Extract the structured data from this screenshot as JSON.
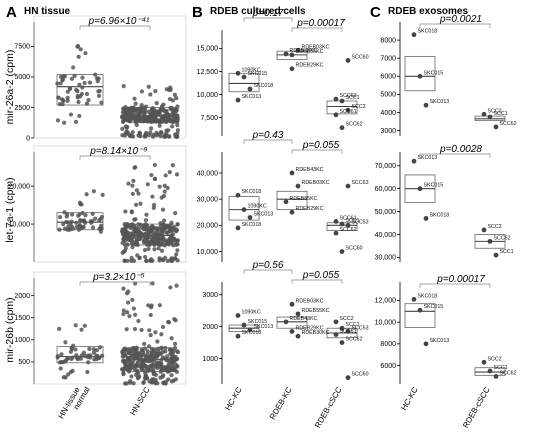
{
  "panels": {
    "A": {
      "letter": "A",
      "title": "HN tissue",
      "xticks": [
        "HN-tissue normal",
        "HN-SCC"
      ]
    },
    "B": {
      "letter": "B",
      "title": "RDEB cultured cells",
      "xticks": [
        "HC-KC",
        "RDEB-KC",
        "RDEB-cSCC"
      ]
    },
    "C": {
      "letter": "C",
      "title": "RDEB exosomes",
      "xticks": [
        "HC-KC",
        "RDEB-cSCC"
      ]
    }
  },
  "row_labels": [
    "mir-26a-2 (cpm)",
    "let-7a-1 (cpm)",
    "mir-26b (cpm)"
  ],
  "pvalues": {
    "A1": "p=6.96×10⁻⁴¹",
    "A2": "p=8.14×10⁻⁹",
    "A3": "p=3.2×10⁻⁵",
    "B1a": "p=0.17",
    "B1b": "p=0.00017",
    "B2a": "p=0.43",
    "B2b": "p=0.055",
    "B3a": "p=0.56",
    "B3b": "p=0.055",
    "C1": "p=0.0021",
    "C2": "p=0.0028",
    "C3": "p=0.00017"
  },
  "chart_data": [
    {
      "id": "A1",
      "type": "box-scatter",
      "ylabel": "mir-26a-2 (cpm)",
      "yticks": [
        "0",
        "2500",
        "5000",
        "7500"
      ],
      "ylim": [
        0,
        9500
      ],
      "categories": [
        "HN-tissue normal",
        "HN-SCC"
      ],
      "boxes": [
        {
          "q1": 2700,
          "median": 4200,
          "q3": 5200,
          "low": 1200,
          "high": 7600
        },
        {
          "q1": 1300,
          "median": 1800,
          "q3": 2500,
          "low": 100,
          "high": 4300
        }
      ],
      "pvalue": "p=6.96×10⁻⁴¹"
    },
    {
      "id": "A2",
      "type": "box-scatter",
      "ylabel": "let-7a-1 (cpm)",
      "yticks": [
        "10,000",
        "20,000"
      ],
      "ylim": [
        0,
        29000
      ],
      "categories": [
        "HN-tissue normal",
        "HN-SCC"
      ],
      "boxes": [
        {
          "q1": 8500,
          "median": 10500,
          "q3": 13000,
          "low": 4000,
          "high": 19500
        },
        {
          "q1": 4500,
          "median": 7000,
          "q3": 10000,
          "low": 300,
          "high": 27000
        }
      ],
      "pvalue": "p=8.14×10⁻⁹"
    },
    {
      "id": "A3",
      "type": "box-scatter",
      "ylabel": "mir-26b (cpm)",
      "yticks": [
        "500",
        "1000",
        "1500",
        "2000"
      ],
      "ylim": [
        0,
        2400
      ],
      "categories": [
        "HN-tissue normal",
        "HN-SCC"
      ],
      "boxes": [
        {
          "q1": 480,
          "median": 620,
          "q3": 850,
          "low": 150,
          "high": 1500
        },
        {
          "q1": 280,
          "median": 560,
          "q3": 820,
          "low": 10,
          "high": 2300
        }
      ],
      "pvalue": "p=3.2×10⁻⁵"
    },
    {
      "id": "B1",
      "type": "box-scatter",
      "yticks": [
        "7,500",
        "10,000",
        "12,500",
        "15,000"
      ],
      "ylim": [
        5500,
        17000
      ],
      "categories": [
        "HC-KC",
        "RDEB-KC",
        "RDEB-cSCC"
      ],
      "boxes": [
        {
          "q1": 10300,
          "median": 11200,
          "q3": 12300
        },
        {
          "q1": 13800,
          "median": 14300,
          "q3": 14700
        },
        {
          "q1": 7900,
          "median": 8700,
          "q3": 9300
        }
      ],
      "points": [
        {
          "label": "1090KC",
          "x": 0,
          "y": 12300
        },
        {
          "label": "SKC015",
          "x": 0,
          "y": 11900
        },
        {
          "label": "SKC018",
          "x": 0,
          "y": 10600
        },
        {
          "label": "SKC013",
          "x": 0,
          "y": 9400
        },
        {
          "label": "RDEB55KC",
          "x": 1,
          "y": 14300
        },
        {
          "label": "RDEB03KC",
          "x": 1,
          "y": 14800
        },
        {
          "label": "RDEB43KC",
          "x": 1,
          "y": 14400
        },
        {
          "label": "RDEB29KC",
          "x": 1,
          "y": 12800
        },
        {
          "label": "SCC60",
          "x": 2,
          "y": 13700
        },
        {
          "label": "SCC63",
          "x": 2,
          "y": 9500
        },
        {
          "label": "SCC1",
          "x": 2,
          "y": 9300
        },
        {
          "label": "SCC2",
          "x": 2,
          "y": 8300
        },
        {
          "label": "SCC61",
          "x": 2,
          "y": 7800
        },
        {
          "label": "SCC62",
          "x": 2,
          "y": 6400
        }
      ],
      "pvalues": [
        "p=0.17",
        "p=0.00017"
      ]
    },
    {
      "id": "B2",
      "type": "box-scatter",
      "yticks": [
        "10,000",
        "20,000",
        "30,000",
        "40,000"
      ],
      "ylim": [
        6000,
        48000
      ],
      "categories": [
        "HC-KC",
        "RDEB-KC",
        "RDEB-cSCC"
      ],
      "boxes": [
        {
          "q1": 22000,
          "median": 26000,
          "q3": 31000
        },
        {
          "q1": 26000,
          "median": 30000,
          "q3": 33000
        },
        {
          "q1": 18000,
          "median": 20000,
          "q3": 21000
        }
      ],
      "points": [
        {
          "label": "SKC018",
          "x": 0,
          "y": 31500
        },
        {
          "label": "1090KC",
          "x": 0,
          "y": 26000
        },
        {
          "label": "SKC013",
          "x": 0,
          "y": 23000
        },
        {
          "label": "SKC018",
          "x": 0,
          "y": 19000
        },
        {
          "label": "RDEB43KC",
          "x": 1,
          "y": 40000
        },
        {
          "label": "RDEB03KC",
          "x": 1,
          "y": 35000
        },
        {
          "label": "RDEB55KC",
          "x": 1,
          "y": 29000
        },
        {
          "label": "RDEB29KC",
          "x": 1,
          "y": 25000
        },
        {
          "label": "SCC63",
          "x": 2,
          "y": 35000
        },
        {
          "label": "SCC61",
          "x": 2,
          "y": 21500
        },
        {
          "label": "SCC1",
          "x": 2,
          "y": 20500
        },
        {
          "label": "SCC53",
          "x": 2,
          "y": 20000
        },
        {
          "label": "SCC62",
          "x": 2,
          "y": 17000
        },
        {
          "label": "SCC60",
          "x": 2,
          "y": 10000
        }
      ],
      "pvalues": [
        "p=0.43",
        "p=0.055"
      ]
    },
    {
      "id": "B3",
      "type": "box-scatter",
      "yticks": [
        "1000",
        "2000",
        "3000"
      ],
      "ylim": [
        200,
        3400
      ],
      "categories": [
        "HC-KC",
        "RDEB-KC",
        "RDEB-cSCC"
      ],
      "boxes": [
        {
          "q1": 1850,
          "median": 1950,
          "q3": 2050
        },
        {
          "q1": 1950,
          "median": 2150,
          "q3": 2300
        },
        {
          "q1": 1650,
          "median": 1800,
          "q3": 1950
        }
      ],
      "points": [
        {
          "label": "1090KC",
          "x": 0,
          "y": 2350
        },
        {
          "label": "SKC015",
          "x": 0,
          "y": 2050
        },
        {
          "label": "SKC013",
          "x": 0,
          "y": 1900
        },
        {
          "label": "SKC018",
          "x": 0,
          "y": 1700
        },
        {
          "label": "RDEB03KC",
          "x": 1,
          "y": 2700
        },
        {
          "label": "RDEB55KC",
          "x": 1,
          "y": 2400
        },
        {
          "label": "RDEB43KC",
          "x": 1,
          "y": 2150
        },
        {
          "label": "RDEB29KC",
          "x": 1,
          "y": 1850
        },
        {
          "label": "RDEB30KC",
          "x": 1,
          "y": 1700
        },
        {
          "label": "SCC2",
          "x": 2,
          "y": 2150
        },
        {
          "label": "SCC1",
          "x": 2,
          "y": 1950
        },
        {
          "label": "SCC53",
          "x": 2,
          "y": 1850
        },
        {
          "label": "SCC61",
          "x": 2,
          "y": 1750
        },
        {
          "label": "SCC62",
          "x": 2,
          "y": 1500
        },
        {
          "label": "SCC60",
          "x": 2,
          "y": 400
        }
      ],
      "pvalues": [
        "p=0.56",
        "p=0.055"
      ]
    },
    {
      "id": "C1",
      "type": "box-scatter",
      "yticks": [
        "3000",
        "4000",
        "5000",
        "6000",
        "7000",
        "8000"
      ],
      "ylim": [
        2700,
        9000
      ],
      "categories": [
        "HC-KC",
        "RDEB-cSCC"
      ],
      "boxes": [
        {
          "q1": 5200,
          "median": 6000,
          "q3": 7100
        },
        {
          "q1": 3550,
          "median": 3650,
          "q3": 3800
        }
      ],
      "points": [
        {
          "label": "SKC018",
          "x": 0,
          "y": 8300
        },
        {
          "label": "SKC015",
          "x": 0,
          "y": 6000
        },
        {
          "label": "SKC013",
          "x": 0,
          "y": 4400
        },
        {
          "label": "SCC2",
          "x": 1,
          "y": 3900
        },
        {
          "label": "SCC1",
          "x": 1,
          "y": 3750
        },
        {
          "label": "SCC62",
          "x": 1,
          "y": 3200
        }
      ],
      "pvalues": [
        "p=0.0021"
      ]
    },
    {
      "id": "C2",
      "type": "box-scatter",
      "yticks": [
        "30,000",
        "40,000",
        "50,000",
        "60,000",
        "70,000"
      ],
      "ylim": [
        28000,
        76000
      ],
      "categories": [
        "HC-KC",
        "RDEB-cSCC"
      ],
      "boxes": [
        {
          "q1": 54000,
          "median": 60000,
          "q3": 66000
        },
        {
          "q1": 34000,
          "median": 37000,
          "q3": 40000
        }
      ],
      "points": [
        {
          "label": "SKC013",
          "x": 0,
          "y": 72000
        },
        {
          "label": "SKC015",
          "x": 0,
          "y": 60000
        },
        {
          "label": "SKC018",
          "x": 0,
          "y": 47000
        },
        {
          "label": "SCC2",
          "x": 1,
          "y": 42000
        },
        {
          "label": "SCC62",
          "x": 1,
          "y": 37000
        },
        {
          "label": "SCC1",
          "x": 1,
          "y": 31000
        }
      ],
      "pvalues": [
        "p=0.0028"
      ]
    },
    {
      "id": "C3",
      "type": "box-scatter",
      "yticks": [
        "6000",
        "8000",
        "10,000",
        "12,000"
      ],
      "ylim": [
        4300,
        13700
      ],
      "categories": [
        "HC-KC",
        "RDEB-cSCC"
      ],
      "boxes": [
        {
          "q1": 9500,
          "median": 11000,
          "q3": 11700
        },
        {
          "q1": 5100,
          "median": 5400,
          "q3": 5800
        }
      ],
      "points": [
        {
          "label": "SKC018",
          "x": 0,
          "y": 12100
        },
        {
          "label": "SKC015",
          "x": 0,
          "y": 11100
        },
        {
          "label": "SKC013",
          "x": 0,
          "y": 8000
        },
        {
          "label": "SCC2",
          "x": 1,
          "y": 6300
        },
        {
          "label": "SCC1",
          "x": 1,
          "y": 5500
        },
        {
          "label": "SCC62",
          "x": 1,
          "y": 5000
        }
      ],
      "pvalues": [
        "p=0.00017"
      ]
    }
  ]
}
